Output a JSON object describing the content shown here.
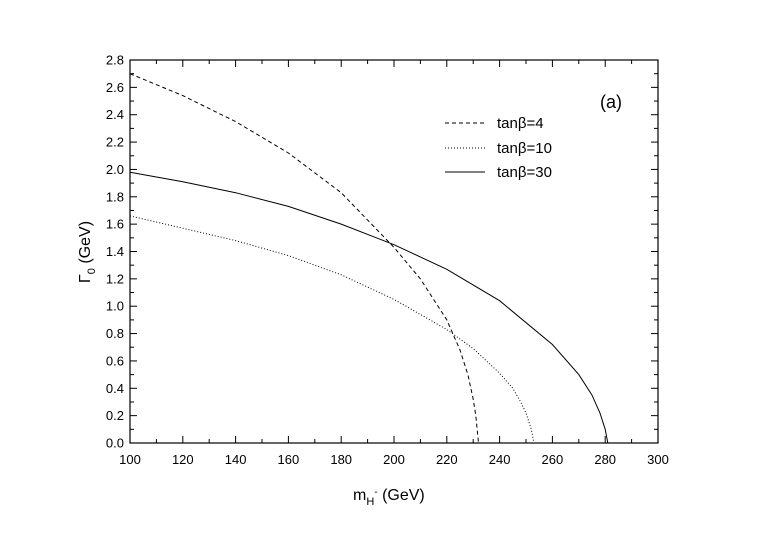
{
  "chart_data": {
    "type": "line",
    "panel_label": "(a)",
    "xlabel_main": "m",
    "xlabel_sub": "H",
    "xlabel_sup": "-",
    "xlabel_unit": " (GeV)",
    "ylabel_main": "Γ",
    "ylabel_sub": "0",
    "ylabel_unit": " (GeV)",
    "xlim": [
      100,
      300
    ],
    "ylim": [
      0,
      2.8
    ],
    "xticks": [
      "100",
      "120",
      "140",
      "160",
      "180",
      "200",
      "220",
      "240",
      "260",
      "280",
      "300"
    ],
    "yticks": [
      "0.0",
      "0.2",
      "0.4",
      "0.6",
      "0.8",
      "1.0",
      "1.2",
      "1.4",
      "1.6",
      "1.8",
      "2.0",
      "2.2",
      "2.4",
      "2.6",
      "2.8"
    ],
    "legend_position": "top-right",
    "series": [
      {
        "name": "tanβ=4",
        "style": "dashed",
        "x": [
          100,
          120,
          140,
          160,
          180,
          200,
          210,
          220,
          225,
          228,
          230,
          231,
          232
        ],
        "y": [
          2.7,
          2.54,
          2.35,
          2.12,
          1.83,
          1.43,
          1.2,
          0.9,
          0.68,
          0.5,
          0.32,
          0.2,
          0.0
        ]
      },
      {
        "name": "tanβ=10",
        "style": "dotted",
        "x": [
          100,
          120,
          140,
          160,
          180,
          200,
          220,
          230,
          240,
          245,
          248,
          250,
          252,
          253
        ],
        "y": [
          1.66,
          1.57,
          1.48,
          1.37,
          1.23,
          1.05,
          0.83,
          0.69,
          0.51,
          0.4,
          0.3,
          0.22,
          0.1,
          0.0
        ]
      },
      {
        "name": "tanβ=30",
        "style": "solid",
        "x": [
          100,
          120,
          140,
          160,
          180,
          200,
          220,
          240,
          260,
          270,
          275,
          278,
          280,
          281
        ],
        "y": [
          1.98,
          1.91,
          1.83,
          1.73,
          1.6,
          1.45,
          1.27,
          1.04,
          0.72,
          0.5,
          0.35,
          0.22,
          0.1,
          0.0
        ]
      }
    ]
  }
}
